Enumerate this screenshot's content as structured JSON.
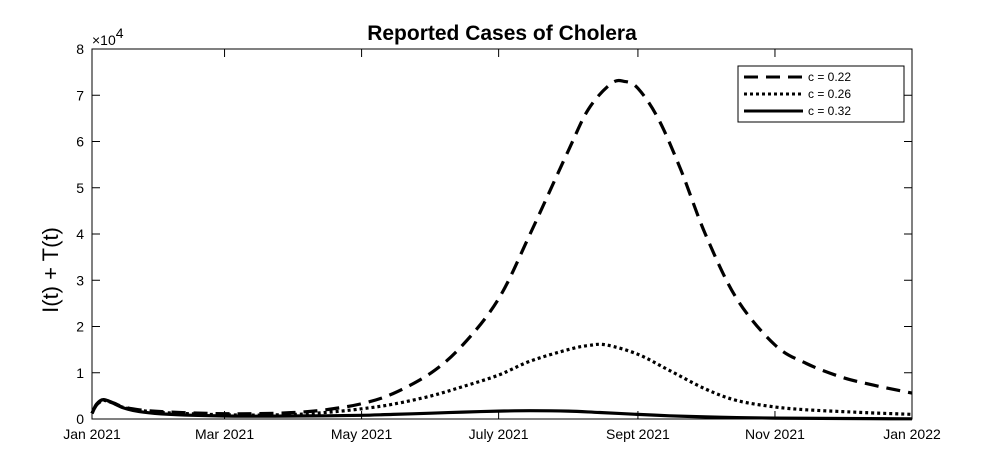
{
  "chart_data": {
    "type": "line",
    "title": "Reported Cases of Cholera",
    "xlabel": "",
    "ylabel": "I(t) + T(t)",
    "y_exponent_label": "×10",
    "y_exponent_power": "4",
    "x_range": [
      "2021-01-01",
      "2022-01-01"
    ],
    "ylim": [
      0,
      80000
    ],
    "x_ticks": [
      {
        "date": "2021-01-01",
        "label": "Jan 2021"
      },
      {
        "date": "2021-03-01",
        "label": "Mar 2021"
      },
      {
        "date": "2021-05-01",
        "label": "May 2021"
      },
      {
        "date": "2021-07-01",
        "label": "July 2021"
      },
      {
        "date": "2021-09-01",
        "label": "Sept 2021"
      },
      {
        "date": "2021-11-01",
        "label": "Nov 2021"
      },
      {
        "date": "2022-01-01",
        "label": "Jan 2022"
      }
    ],
    "y_ticks": [
      {
        "value": 0,
        "label": "0"
      },
      {
        "value": 10000,
        "label": "1"
      },
      {
        "value": 20000,
        "label": "2"
      },
      {
        "value": 30000,
        "label": "3"
      },
      {
        "value": 40000,
        "label": "4"
      },
      {
        "value": 50000,
        "label": "5"
      },
      {
        "value": 60000,
        "label": "6"
      },
      {
        "value": 70000,
        "label": "7"
      },
      {
        "value": 80000,
        "label": "8"
      }
    ],
    "grid": false,
    "legend_position": "top-right",
    "series": [
      {
        "name": "c = 0.22",
        "style": "dashed",
        "color": "#000000",
        "points": [
          [
            "2021-01-01",
            1200
          ],
          [
            "2021-01-03",
            3000
          ],
          [
            "2021-01-06",
            4100
          ],
          [
            "2021-01-10",
            3600
          ],
          [
            "2021-01-15",
            2600
          ],
          [
            "2021-01-22",
            2000
          ],
          [
            "2021-02-01",
            1600
          ],
          [
            "2021-02-15",
            1300
          ],
          [
            "2021-03-01",
            1150
          ],
          [
            "2021-03-15",
            1150
          ],
          [
            "2021-04-01",
            1400
          ],
          [
            "2021-04-15",
            2000
          ],
          [
            "2021-05-01",
            3300
          ],
          [
            "2021-05-15",
            5500
          ],
          [
            "2021-06-01",
            10000
          ],
          [
            "2021-06-15",
            16000
          ],
          [
            "2021-07-01",
            26000
          ],
          [
            "2021-07-15",
            40000
          ],
          [
            "2021-08-01",
            58000
          ],
          [
            "2021-08-10",
            67000
          ],
          [
            "2021-08-20",
            72500
          ],
          [
            "2021-08-26",
            73000
          ],
          [
            "2021-09-01",
            71500
          ],
          [
            "2021-09-10",
            65000
          ],
          [
            "2021-09-20",
            54000
          ],
          [
            "2021-10-01",
            40000
          ],
          [
            "2021-10-15",
            26000
          ],
          [
            "2021-11-01",
            16000
          ],
          [
            "2021-11-15",
            12000
          ],
          [
            "2021-12-01",
            9000
          ],
          [
            "2021-12-15",
            7300
          ],
          [
            "2022-01-01",
            5600
          ]
        ]
      },
      {
        "name": "c = 0.26",
        "style": "dotted",
        "color": "#000000",
        "points": [
          [
            "2021-01-01",
            1200
          ],
          [
            "2021-01-03",
            3000
          ],
          [
            "2021-01-06",
            4000
          ],
          [
            "2021-01-10",
            3500
          ],
          [
            "2021-01-15",
            2500
          ],
          [
            "2021-01-22",
            1900
          ],
          [
            "2021-02-01",
            1400
          ],
          [
            "2021-02-15",
            1100
          ],
          [
            "2021-03-01",
            900
          ],
          [
            "2021-03-15",
            850
          ],
          [
            "2021-04-01",
            1000
          ],
          [
            "2021-04-15",
            1400
          ],
          [
            "2021-05-01",
            2200
          ],
          [
            "2021-05-15",
            3200
          ],
          [
            "2021-06-01",
            5000
          ],
          [
            "2021-06-15",
            7000
          ],
          [
            "2021-07-01",
            9500
          ],
          [
            "2021-07-15",
            12500
          ],
          [
            "2021-08-01",
            15000
          ],
          [
            "2021-08-10",
            15900
          ],
          [
            "2021-08-18",
            16000
          ],
          [
            "2021-09-01",
            14000
          ],
          [
            "2021-09-15",
            10500
          ],
          [
            "2021-10-01",
            6500
          ],
          [
            "2021-10-15",
            4000
          ],
          [
            "2021-11-01",
            2600
          ],
          [
            "2021-11-15",
            2000
          ],
          [
            "2021-12-01",
            1600
          ],
          [
            "2021-12-15",
            1300
          ],
          [
            "2022-01-01",
            1000
          ]
        ]
      },
      {
        "name": "c = 0.32",
        "style": "solid",
        "color": "#000000",
        "points": [
          [
            "2021-01-01",
            1200
          ],
          [
            "2021-01-03",
            3200
          ],
          [
            "2021-01-06",
            4200
          ],
          [
            "2021-01-10",
            3500
          ],
          [
            "2021-01-15",
            2400
          ],
          [
            "2021-01-22",
            1600
          ],
          [
            "2021-02-01",
            1100
          ],
          [
            "2021-02-15",
            800
          ],
          [
            "2021-03-01",
            650
          ],
          [
            "2021-03-15",
            600
          ],
          [
            "2021-04-01",
            650
          ],
          [
            "2021-04-15",
            700
          ],
          [
            "2021-05-01",
            800
          ],
          [
            "2021-05-15",
            1000
          ],
          [
            "2021-06-01",
            1250
          ],
          [
            "2021-06-15",
            1500
          ],
          [
            "2021-07-01",
            1700
          ],
          [
            "2021-07-15",
            1800
          ],
          [
            "2021-08-01",
            1700
          ],
          [
            "2021-08-15",
            1400
          ],
          [
            "2021-09-01",
            1000
          ],
          [
            "2021-09-15",
            700
          ],
          [
            "2021-10-01",
            450
          ],
          [
            "2021-10-15",
            300
          ],
          [
            "2021-11-01",
            200
          ],
          [
            "2021-12-01",
            100
          ],
          [
            "2022-01-01",
            50
          ]
        ]
      }
    ]
  }
}
